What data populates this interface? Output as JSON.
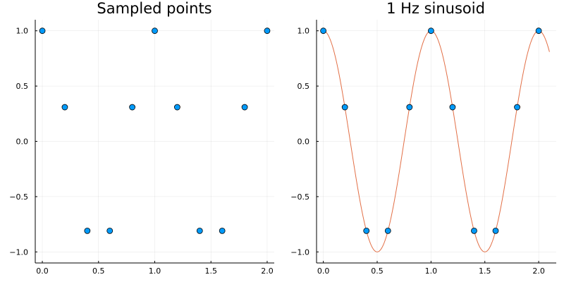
{
  "colors": {
    "points": "#009af9",
    "curve": "#e26f46",
    "point_edge": "#000000"
  },
  "chart_data": [
    {
      "type": "scatter",
      "title": "Sampled points",
      "xlabel": "",
      "ylabel": "",
      "xlim": [
        -0.063,
        2.063
      ],
      "ylim": [
        -1.1,
        1.1
      ],
      "xticks": [
        0.0,
        0.5,
        1.0,
        1.5,
        2.0
      ],
      "xtick_labels": [
        "0.0",
        "0.5",
        "1.0",
        "1.5",
        "2.0"
      ],
      "yticks": [
        -1.0,
        -0.5,
        0.0,
        0.5,
        1.0
      ],
      "ytick_labels": [
        "−1.0",
        "−0.5",
        "0.0",
        "0.5",
        "1.0"
      ],
      "grid": true,
      "series": [
        {
          "type": "scatter",
          "x": [
            0.0,
            0.2,
            0.4,
            0.6,
            0.8,
            1.0,
            1.2,
            1.4,
            1.6,
            1.8,
            2.0
          ],
          "y": [
            1.0,
            0.309,
            -0.809,
            -0.809,
            0.309,
            1.0,
            0.309,
            -0.809,
            -0.809,
            0.309,
            1.0
          ]
        }
      ]
    },
    {
      "type": "line",
      "title": "1 Hz sinusoid",
      "xlabel": "",
      "ylabel": "",
      "xlim": [
        -0.063,
        2.163
      ],
      "ylim": [
        -1.1,
        1.1
      ],
      "xticks": [
        0.0,
        0.5,
        1.0,
        1.5,
        2.0
      ],
      "xtick_labels": [
        "0.0",
        "0.5",
        "1.0",
        "1.5",
        "2.0"
      ],
      "yticks": [
        -1.0,
        -0.5,
        0.0,
        0.5,
        1.0
      ],
      "ytick_labels": [
        "−1.0",
        "−0.5",
        "0.0",
        "0.5",
        "1.0"
      ],
      "grid": true,
      "series": [
        {
          "type": "line",
          "function": "cos(2*pi*x)",
          "x_range": [
            0.0,
            2.1
          ]
        },
        {
          "type": "scatter",
          "x": [
            0.0,
            0.2,
            0.4,
            0.6,
            0.8,
            1.0,
            1.2,
            1.4,
            1.6,
            1.8,
            2.0
          ],
          "y": [
            1.0,
            0.309,
            -0.809,
            -0.809,
            0.309,
            1.0,
            0.309,
            -0.809,
            -0.809,
            0.309,
            1.0
          ]
        }
      ]
    }
  ]
}
